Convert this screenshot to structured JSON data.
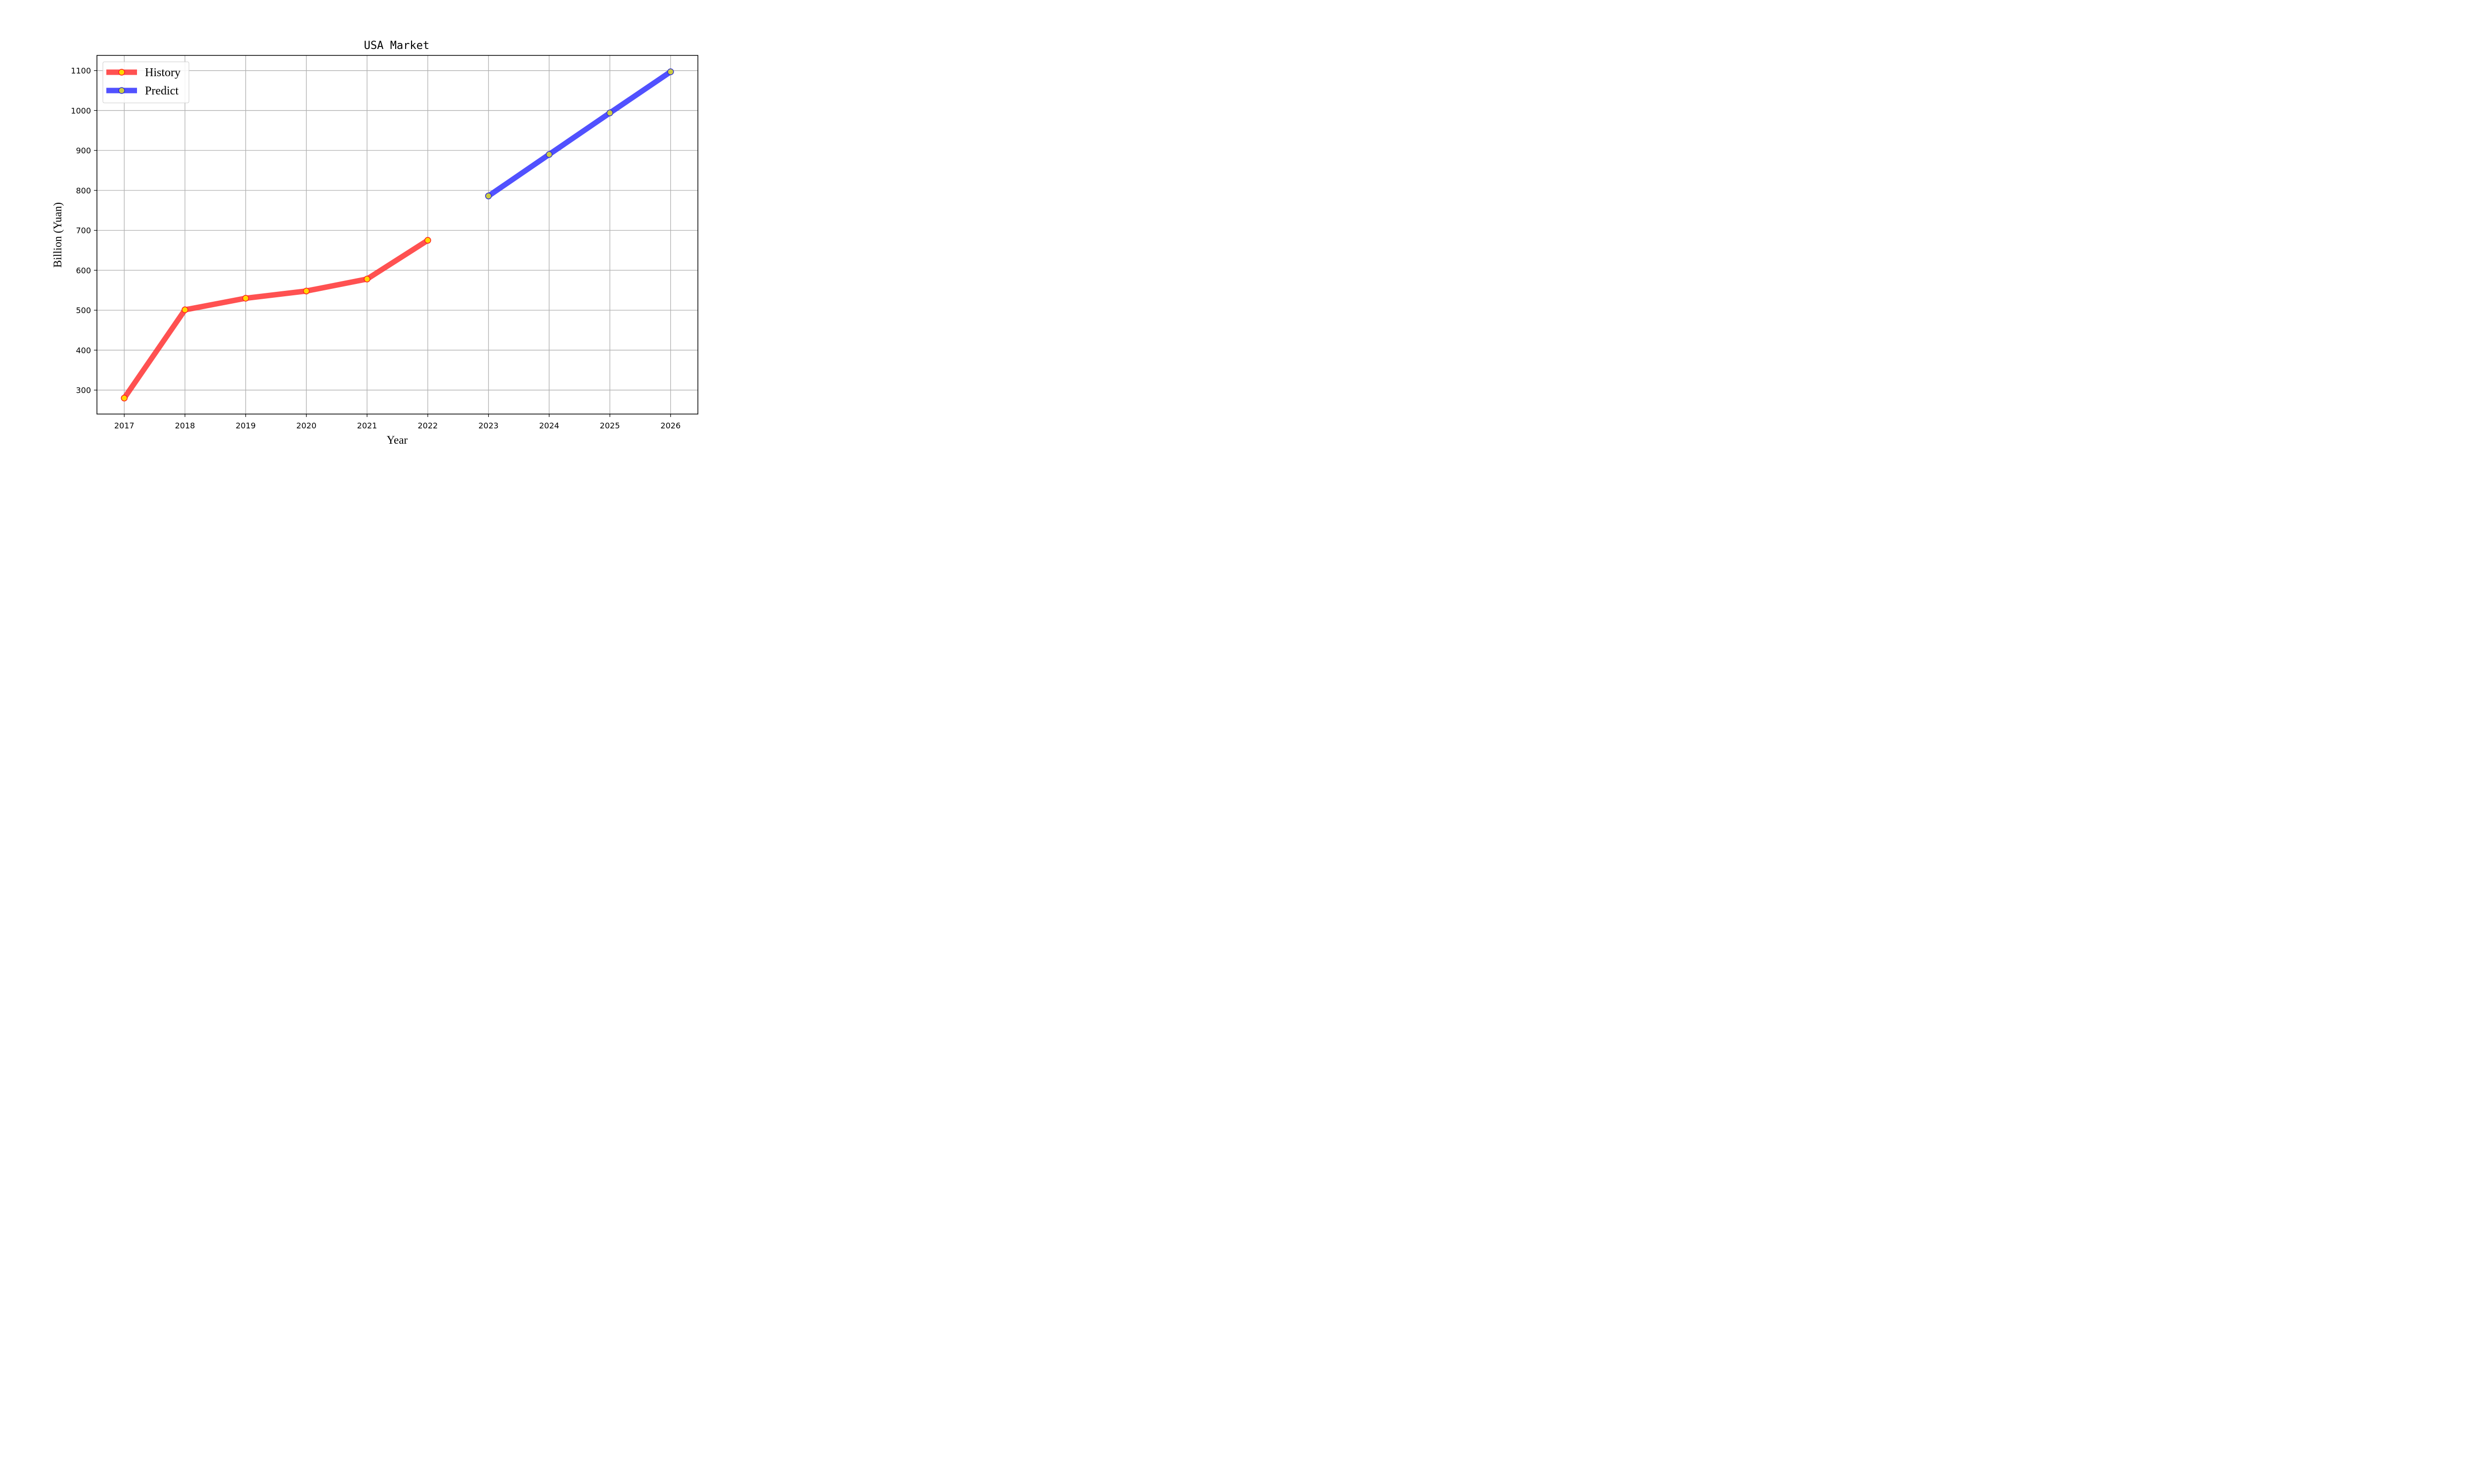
{
  "chart_data": {
    "type": "line",
    "title": "USA Market",
    "xlabel": "Year",
    "ylabel": "Billion (Yuan)",
    "x_ticks": [
      "2017",
      "2018",
      "2019",
      "2020",
      "2021",
      "2022",
      "2023",
      "2024",
      "2025",
      "2026"
    ],
    "y_ticks": [
      "300",
      "400",
      "500",
      "600",
      "700",
      "800",
      "900",
      "1000",
      "1100"
    ],
    "xlim": [
      2016.55,
      2026.45
    ],
    "ylim": [
      240,
      1138
    ],
    "grid": true,
    "legend_position": "top-left",
    "series": [
      {
        "name": "History",
        "color": "#ff3333",
        "marker_face": "#ffd700",
        "marker_edge": "#ff2020",
        "x": [
          2017,
          2018,
          2019,
          2020,
          2021,
          2022
        ],
        "y": [
          280,
          501,
          530,
          548,
          578,
          675
        ]
      },
      {
        "name": "Predict",
        "color": "#3333ff",
        "marker_face": "#cccc44",
        "marker_edge": "#3333cc",
        "x": [
          2023,
          2024,
          2025,
          2026
        ],
        "y": [
          786,
          890,
          994,
          1097
        ]
      }
    ]
  }
}
